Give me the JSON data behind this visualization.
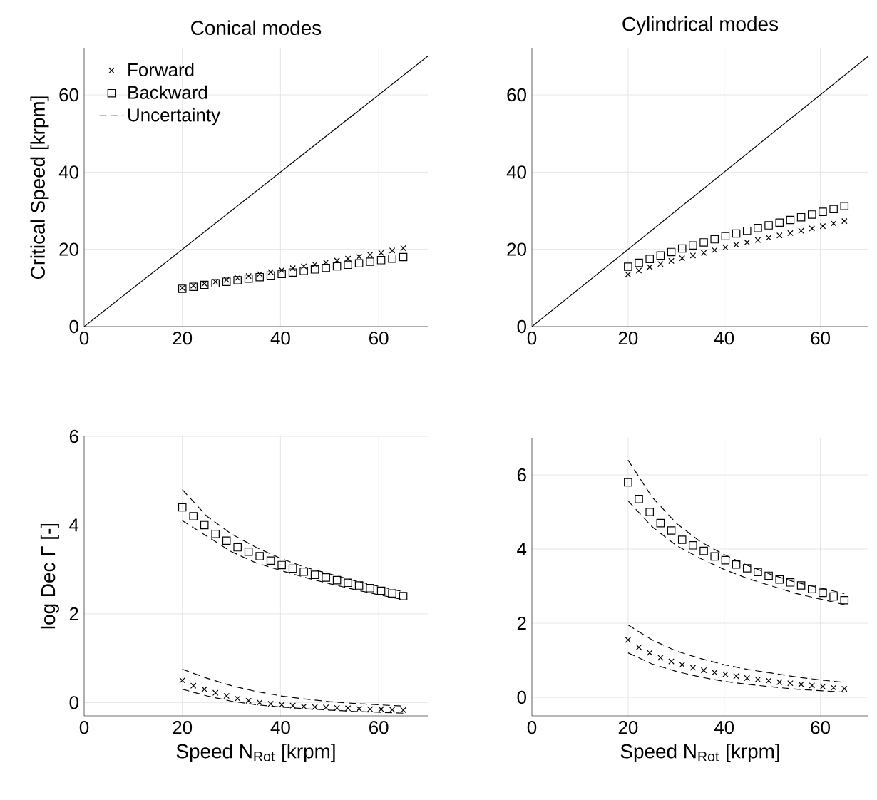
{
  "chart_data": [
    {
      "type": "scatter",
      "title": "Conical modes",
      "ylabel": "Critical Speed [krpm]",
      "xlim": [
        0,
        70
      ],
      "ylim": [
        0,
        72
      ],
      "xticks": [
        0,
        20,
        40,
        60
      ],
      "yticks": [
        0,
        20,
        40,
        60
      ],
      "grid": true,
      "legend": "top left",
      "x": [
        20,
        22.25,
        24.5,
        26.75,
        29,
        31.25,
        33.5,
        35.75,
        38,
        40.25,
        42.5,
        44.75,
        47,
        49.25,
        51.5,
        53.75,
        56,
        58.25,
        60.5,
        62.75,
        65
      ],
      "series": [
        {
          "name": "Forward",
          "type": "scatter",
          "marker": "cross",
          "color": "#000000",
          "values": [
            10,
            10.6,
            11.1,
            11.6,
            12.1,
            12.6,
            13.1,
            13.6,
            14.1,
            14.6,
            15.1,
            15.6,
            16.1,
            16.6,
            17.1,
            17.6,
            18.1,
            18.6,
            19.1,
            19.7,
            20.3
          ]
        },
        {
          "name": "Backward",
          "type": "scatter",
          "marker": "square",
          "color": "#000000",
          "values": [
            9.8,
            10.3,
            10.8,
            11.2,
            11.6,
            12.0,
            12.4,
            12.8,
            13.2,
            13.6,
            14.0,
            14.4,
            14.8,
            15.2,
            15.6,
            16.0,
            16.4,
            16.8,
            17.2,
            17.6,
            18.0
          ]
        },
        {
          "name": "Uncertainty",
          "type": "line",
          "line_style": "dashed",
          "color": "#000000",
          "values": [
            null,
            null,
            null,
            null,
            null,
            null,
            null,
            null,
            null,
            null,
            null,
            null,
            null,
            null,
            null,
            null,
            null,
            null,
            null,
            null,
            null
          ]
        },
        {
          "type": "line",
          "line_style": "solid",
          "color": "#000000",
          "x": [
            0,
            70
          ],
          "values": [
            0,
            70
          ]
        }
      ]
    },
    {
      "type": "scatter",
      "title": "Cylindrical modes",
      "xlim": [
        0,
        70
      ],
      "ylim": [
        0,
        72
      ],
      "xticks": [
        0,
        20,
        40,
        60
      ],
      "yticks": [
        0,
        20,
        40,
        60
      ],
      "grid": true,
      "x": [
        20,
        22.25,
        24.5,
        26.75,
        29,
        31.25,
        33.5,
        35.75,
        38,
        40.25,
        42.5,
        44.75,
        47,
        49.25,
        51.5,
        53.75,
        56,
        58.25,
        60.5,
        62.75,
        65
      ],
      "series": [
        {
          "type": "scatter",
          "marker": "cross",
          "color": "#000000",
          "values": [
            13.5,
            14.5,
            15.4,
            16.2,
            17.0,
            17.7,
            18.4,
            19.1,
            19.8,
            20.5,
            21.2,
            21.8,
            22.4,
            23.0,
            23.6,
            24.2,
            24.8,
            25.4,
            26.0,
            26.7,
            27.3
          ]
        },
        {
          "type": "scatter",
          "marker": "square",
          "color": "#000000",
          "values": [
            15.5,
            16.5,
            17.5,
            18.4,
            19.3,
            20.2,
            21.0,
            21.8,
            22.6,
            23.4,
            24.1,
            24.8,
            25.5,
            26.2,
            26.9,
            27.6,
            28.3,
            29.0,
            29.7,
            30.4,
            31.2
          ]
        },
        {
          "type": "line",
          "line_style": "solid",
          "color": "#000000",
          "x": [
            0,
            70
          ],
          "values": [
            0,
            70
          ]
        }
      ]
    },
    {
      "type": "scatter",
      "xlabel": "Speed N$_{Rot}$ [krpm]",
      "ylabel": "log Dec Γ [-]",
      "xlim": [
        0,
        70
      ],
      "ylim": [
        -0.3,
        6
      ],
      "xticks": [
        0,
        20,
        40,
        60
      ],
      "yticks": [
        0,
        2,
        4,
        6
      ],
      "grid": true,
      "x": [
        20,
        22.25,
        24.5,
        26.75,
        29,
        31.25,
        33.5,
        35.75,
        38,
        40.25,
        42.5,
        44.75,
        47,
        49.25,
        51.5,
        53.75,
        56,
        58.25,
        60.5,
        62.75,
        65
      ],
      "series": [
        {
          "type": "scatter",
          "marker": "cross",
          "color": "#000000",
          "values": [
            0.5,
            0.38,
            0.3,
            0.22,
            0.15,
            0.09,
            0.04,
            0.0,
            -0.03,
            -0.05,
            -0.07,
            -0.09,
            -0.1,
            -0.11,
            -0.12,
            -0.13,
            -0.14,
            -0.15,
            -0.15,
            -0.16,
            -0.17
          ]
        },
        {
          "type": "scatter",
          "marker": "square",
          "color": "#000000",
          "values": [
            4.4,
            4.2,
            4.0,
            3.8,
            3.65,
            3.5,
            3.4,
            3.3,
            3.2,
            3.1,
            3.02,
            2.95,
            2.88,
            2.82,
            2.76,
            2.7,
            2.64,
            2.58,
            2.52,
            2.46,
            2.4
          ]
        },
        {
          "type": "line",
          "line_style": "dashed",
          "color": "#000000",
          "x": [
            20,
            25,
            30,
            35,
            40,
            45,
            50,
            55,
            60,
            65
          ],
          "values": [
            0.75,
            0.55,
            0.38,
            0.25,
            0.15,
            0.08,
            0.02,
            -0.02,
            -0.05,
            -0.08
          ]
        },
        {
          "type": "line",
          "line_style": "dashed",
          "color": "#000000",
          "x": [
            20,
            25,
            30,
            35,
            40,
            45,
            50,
            55,
            60,
            65
          ],
          "values": [
            0.3,
            0.15,
            0.03,
            -0.05,
            -0.1,
            -0.14,
            -0.17,
            -0.2,
            -0.22,
            -0.24
          ]
        },
        {
          "type": "line",
          "line_style": "dashed",
          "color": "#000000",
          "x": [
            20,
            25,
            30,
            35,
            40,
            45,
            50,
            55,
            60,
            65
          ],
          "values": [
            4.8,
            4.2,
            3.8,
            3.5,
            3.25,
            3.05,
            2.9,
            2.75,
            2.62,
            2.5
          ]
        },
        {
          "type": "line",
          "line_style": "dashed",
          "color": "#000000",
          "x": [
            20,
            25,
            30,
            35,
            40,
            45,
            50,
            55,
            60,
            65
          ],
          "values": [
            4.1,
            3.75,
            3.4,
            3.15,
            2.98,
            2.82,
            2.68,
            2.55,
            2.43,
            2.32
          ]
        }
      ]
    },
    {
      "type": "scatter",
      "xlabel": "Speed N$_{Rot}$ [krpm]",
      "xlim": [
        0,
        70
      ],
      "ylim": [
        -0.5,
        7
      ],
      "xticks": [
        0,
        20,
        40,
        60
      ],
      "yticks": [
        0,
        2,
        4,
        6
      ],
      "grid": true,
      "x": [
        20,
        22.25,
        24.5,
        26.75,
        29,
        31.25,
        33.5,
        35.75,
        38,
        40.25,
        42.5,
        44.75,
        47,
        49.25,
        51.5,
        53.75,
        56,
        58.25,
        60.5,
        62.75,
        65
      ],
      "series": [
        {
          "type": "scatter",
          "marker": "cross",
          "color": "#000000",
          "values": [
            1.55,
            1.35,
            1.2,
            1.07,
            0.97,
            0.88,
            0.8,
            0.73,
            0.67,
            0.62,
            0.57,
            0.52,
            0.48,
            0.45,
            0.41,
            0.38,
            0.35,
            0.32,
            0.29,
            0.26,
            0.23
          ]
        },
        {
          "type": "scatter",
          "marker": "square",
          "color": "#000000",
          "values": [
            5.8,
            5.35,
            5.0,
            4.7,
            4.5,
            4.25,
            4.1,
            3.95,
            3.8,
            3.7,
            3.58,
            3.48,
            3.38,
            3.28,
            3.18,
            3.1,
            3.02,
            2.92,
            2.82,
            2.72,
            2.62
          ]
        },
        {
          "type": "line",
          "line_style": "dashed",
          "color": "#000000",
          "x": [
            20,
            25,
            30,
            35,
            40,
            45,
            50,
            55,
            60,
            65
          ],
          "values": [
            1.95,
            1.55,
            1.25,
            1.05,
            0.88,
            0.75,
            0.65,
            0.55,
            0.47,
            0.4
          ]
        },
        {
          "type": "line",
          "line_style": "dashed",
          "color": "#000000",
          "x": [
            20,
            25,
            30,
            35,
            40,
            45,
            50,
            55,
            60,
            65
          ],
          "values": [
            1.2,
            0.9,
            0.7,
            0.55,
            0.43,
            0.35,
            0.28,
            0.22,
            0.18,
            0.14
          ]
        },
        {
          "type": "line",
          "line_style": "dashed",
          "color": "#000000",
          "x": [
            20,
            25,
            30,
            35,
            40,
            45,
            50,
            55,
            60,
            65
          ],
          "values": [
            6.4,
            5.4,
            4.7,
            4.2,
            3.85,
            3.55,
            3.3,
            3.1,
            2.95,
            2.8
          ]
        },
        {
          "type": "line",
          "line_style": "dashed",
          "color": "#000000",
          "x": [
            20,
            25,
            30,
            35,
            40,
            45,
            50,
            55,
            60,
            65
          ],
          "values": [
            5.3,
            4.6,
            4.1,
            3.75,
            3.45,
            3.2,
            3.0,
            2.8,
            2.65,
            2.5
          ]
        }
      ]
    }
  ]
}
